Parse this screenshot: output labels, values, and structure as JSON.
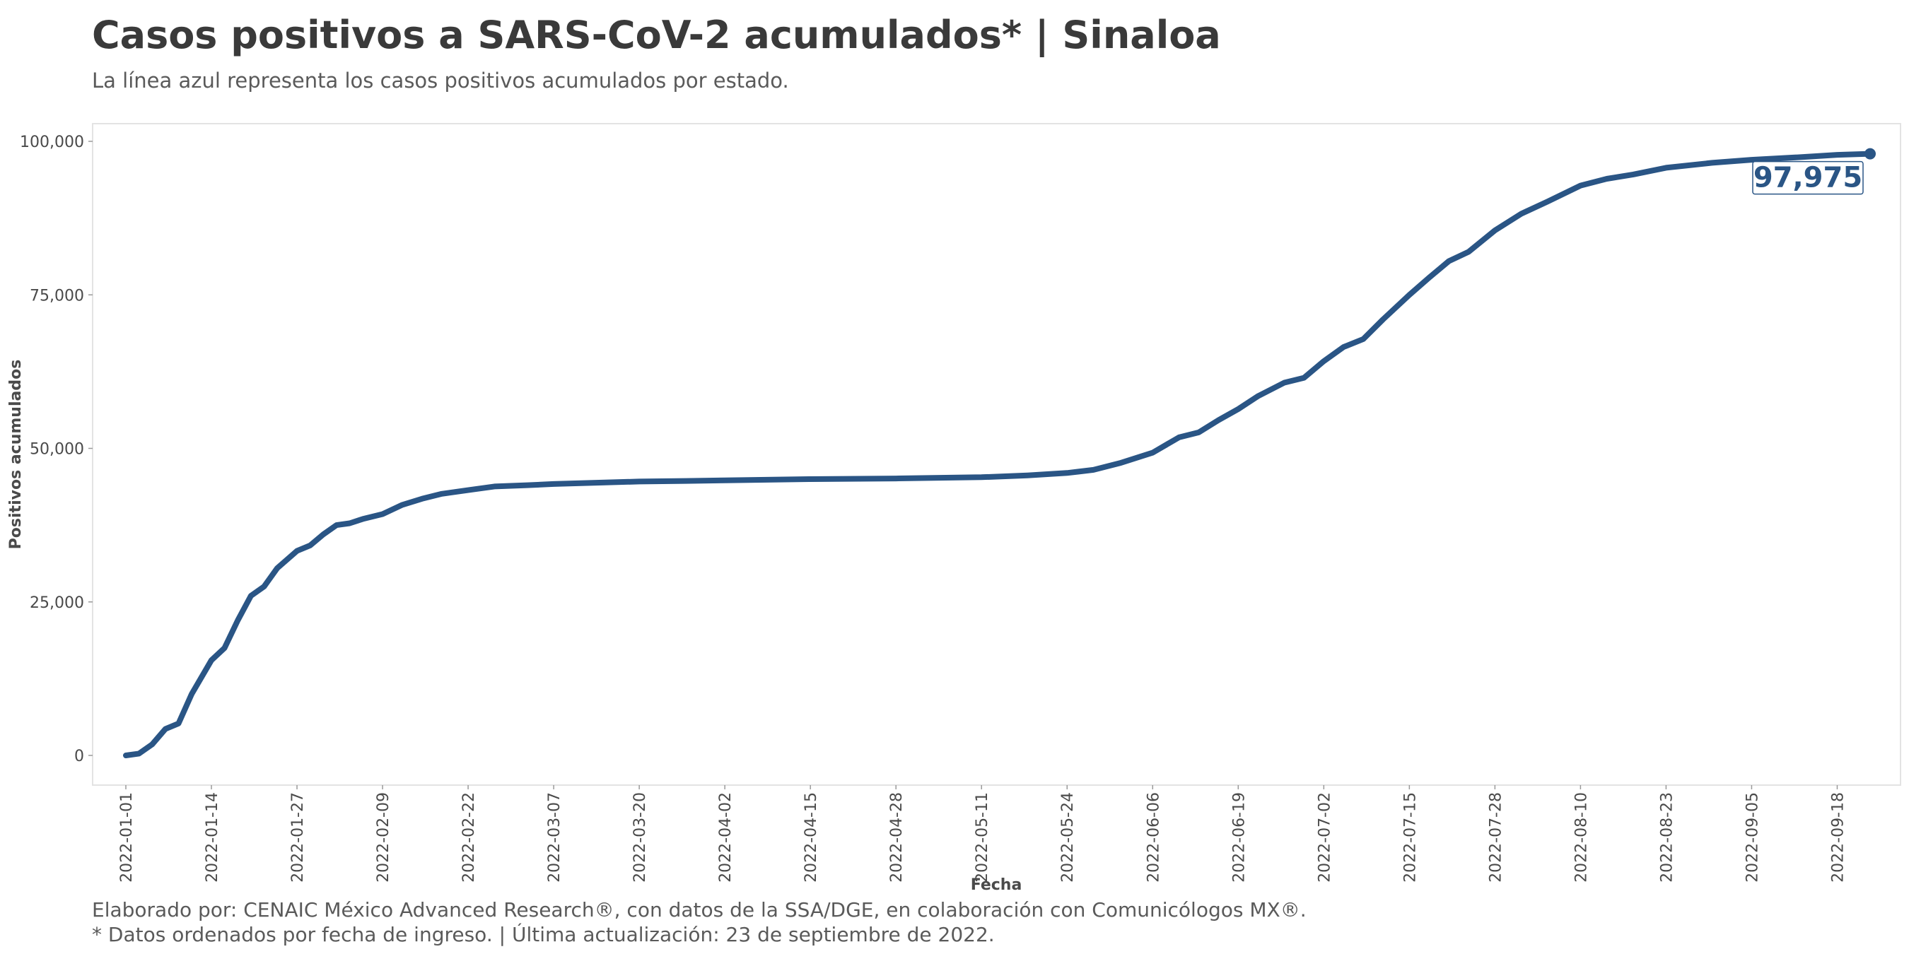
{
  "title": "Casos positivos a SARS-CoV-2 acumulados* | Sinaloa",
  "subtitle": "La línea azul representa los casos positivos acumulados por estado.",
  "caption_line1": "Elaborado por: CENAIC México Advanced Research®, con datos de la SSA/DGE, en colaboración con Comunicólogos MX®.",
  "caption_line2": "* Datos ordenados por fecha de ingreso. | Última actualización: 23 de septiembre de 2022.",
  "colors": {
    "line": "#2a5585",
    "panel_border": "#e3e3e3",
    "text": "#3a3a3a"
  },
  "chart_data": {
    "type": "line",
    "xlabel": "Fecha",
    "ylabel": "Positivos acumulados",
    "xlim": [
      "2022-01-01",
      "2022-09-23"
    ],
    "ylim": [
      -5000,
      100000
    ],
    "yticks": [
      0,
      25000,
      50000,
      75000,
      100000
    ],
    "ytick_labels": [
      "0",
      "25,000",
      "50,000",
      "75,000",
      "100,000"
    ],
    "xtick_labels": [
      "2022-01-01",
      "2022-01-14",
      "2022-01-27",
      "2022-02-09",
      "2022-02-22",
      "2022-03-07",
      "2022-03-20",
      "2022-04-02",
      "2022-04-15",
      "2022-04-28",
      "2022-05-11",
      "2022-05-24",
      "2022-06-06",
      "2022-06-19",
      "2022-07-02",
      "2022-07-15",
      "2022-07-28",
      "2022-08-10",
      "2022-08-23",
      "2022-09-05",
      "2022-09-18"
    ],
    "grid": false,
    "legend": "none",
    "series": [
      {
        "x": [
          "2022-01-01",
          "2022-01-03",
          "2022-01-05",
          "2022-01-07",
          "2022-01-09",
          "2022-01-11",
          "2022-01-14",
          "2022-01-16",
          "2022-01-18",
          "2022-01-20",
          "2022-01-22",
          "2022-01-24",
          "2022-01-27",
          "2022-01-29",
          "2022-01-31",
          "2022-02-02",
          "2022-02-04",
          "2022-02-06",
          "2022-02-09",
          "2022-02-12",
          "2022-02-15",
          "2022-02-18",
          "2022-02-22",
          "2022-02-26",
          "2022-03-03",
          "2022-03-07",
          "2022-03-13",
          "2022-03-20",
          "2022-03-27",
          "2022-04-02",
          "2022-04-15",
          "2022-04-28",
          "2022-05-11",
          "2022-05-18",
          "2022-05-24",
          "2022-05-28",
          "2022-06-01",
          "2022-06-06",
          "2022-06-10",
          "2022-06-13",
          "2022-06-16",
          "2022-06-19",
          "2022-06-22",
          "2022-06-26",
          "2022-06-29",
          "2022-07-02",
          "2022-07-05",
          "2022-07-08",
          "2022-07-11",
          "2022-07-15",
          "2022-07-18",
          "2022-07-21",
          "2022-07-24",
          "2022-07-28",
          "2022-08-01",
          "2022-08-05",
          "2022-08-10",
          "2022-08-14",
          "2022-08-18",
          "2022-08-23",
          "2022-08-30",
          "2022-09-05",
          "2022-09-12",
          "2022-09-18",
          "2022-09-23"
        ],
        "y": [
          0,
          300,
          1800,
          4300,
          5200,
          10000,
          15500,
          17500,
          22000,
          26000,
          27500,
          30500,
          33300,
          34200,
          36000,
          37500,
          37800,
          38500,
          39300,
          40800,
          41800,
          42600,
          43200,
          43800,
          44000,
          44200,
          44400,
          44600,
          44700,
          44800,
          45000,
          45100,
          45300,
          45600,
          46000,
          46500,
          47600,
          49300,
          51800,
          52600,
          54600,
          56400,
          58500,
          60700,
          61500,
          64200,
          66500,
          67800,
          71000,
          75000,
          77800,
          80500,
          82000,
          85500,
          88200,
          90200,
          92800,
          93900,
          94600,
          95700,
          96500,
          97000,
          97400,
          97800,
          97975
        ]
      }
    ],
    "end_label": "97,975"
  }
}
